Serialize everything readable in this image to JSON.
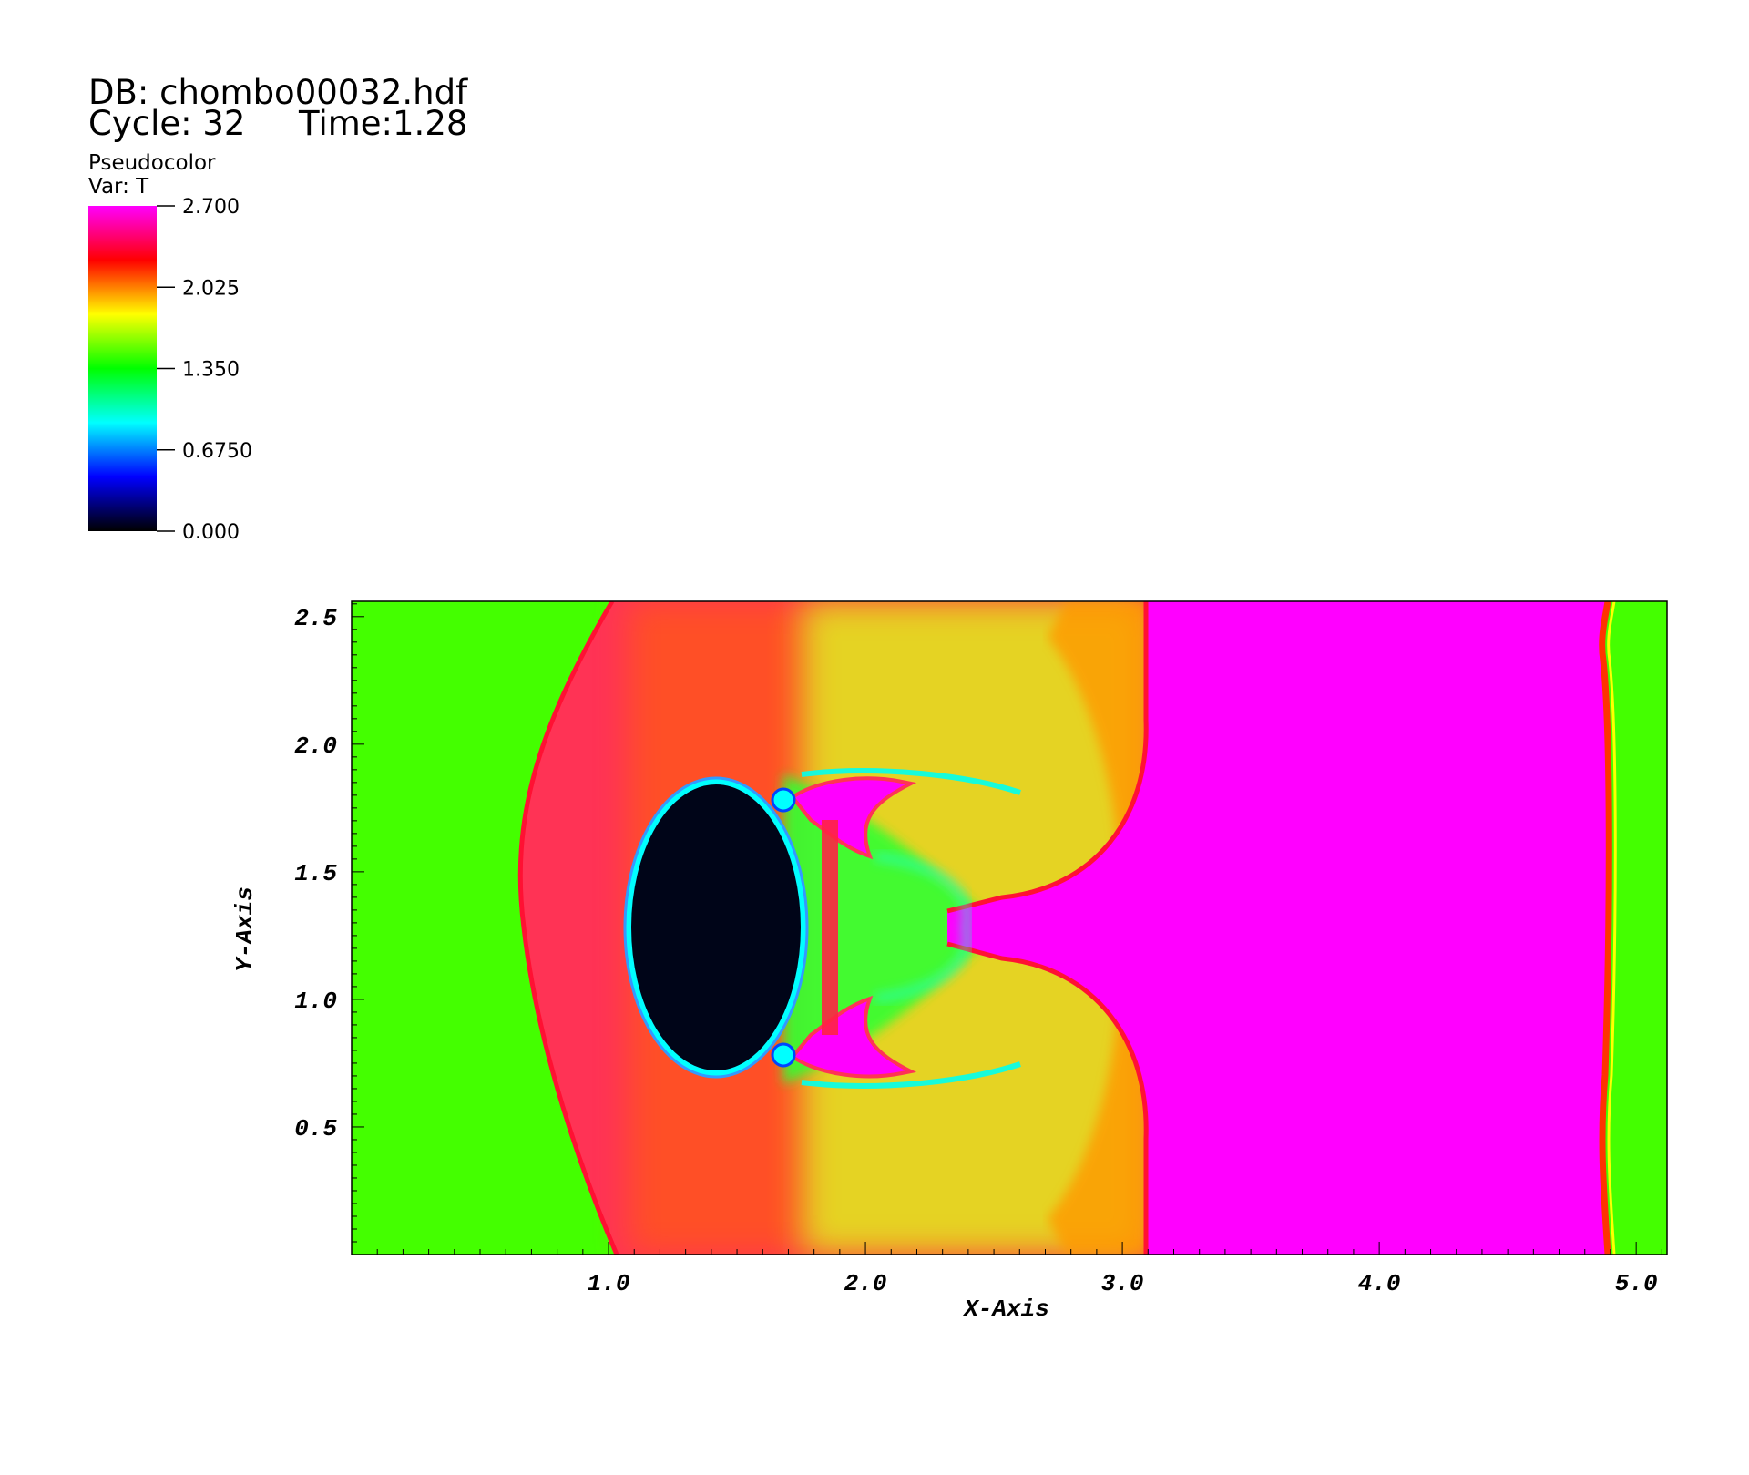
{
  "header": {
    "db": "DB: chombo00032.hdf",
    "cycle": "Cycle: 32",
    "time": "Time:1.28"
  },
  "legend": {
    "plot_type": "Pseudocolor",
    "variable": "Var: T",
    "min": 0.0,
    "max": 2.7,
    "tick_labels": [
      "2.700",
      "2.025",
      "1.350",
      "0.6750",
      "0.000"
    ],
    "tick_values": [
      2.7,
      2.025,
      1.35,
      0.675,
      0.0
    ],
    "colormap": [
      "#000000",
      "#0000ff",
      "#00ffff",
      "#00ff00",
      "#ffff00",
      "#ff0000",
      "#ff00ff"
    ]
  },
  "chart_data": {
    "type": "heatmap",
    "xlabel": "X-Axis",
    "ylabel": "Y-Axis",
    "xlim": [
      0.0,
      5.12
    ],
    "ylim": [
      0.0,
      2.56
    ],
    "xticks": [
      1.0,
      2.0,
      3.0,
      4.0,
      5.0
    ],
    "xtick_labels": [
      "1.0",
      "2.0",
      "3.0",
      "4.0",
      "5.0"
    ],
    "yticks": [
      0.5,
      1.0,
      1.5,
      2.0,
      2.5
    ],
    "ytick_labels": [
      "0.5",
      "1.0",
      "1.5",
      "2.0",
      "2.5"
    ],
    "grid": false,
    "field": {
      "ambient_value": 1.35,
      "shocked_value": 2.7,
      "bow_shock": {
        "x_apex": 0.66,
        "x_edge": 1.02,
        "y_center": 1.28
      },
      "bubble": {
        "x_center": 1.45,
        "y_center": 1.28,
        "rx": 0.42,
        "ry": 0.52,
        "value": 0.05
      },
      "hot_slab": {
        "x_start": 3.1,
        "x_end": 4.9,
        "value": 2.7
      },
      "fingers": [
        {
          "x_start": 1.7,
          "x_end": 2.6,
          "y": 1.8
        },
        {
          "x_start": 1.7,
          "x_end": 2.6,
          "y": 0.76
        }
      ]
    }
  }
}
